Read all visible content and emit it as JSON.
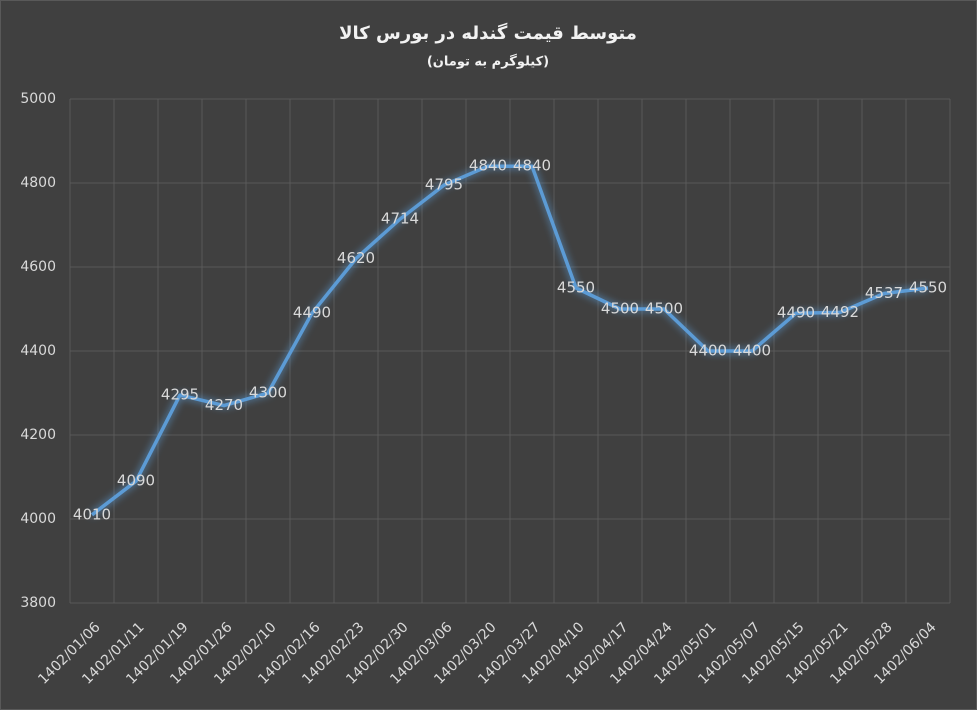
{
  "chart_data": {
    "type": "line",
    "title": "متوسط قیمت گندله در بورس کالا",
    "subtitle": "(کیلوگرم به تومان)",
    "categories": [
      "1402/01/06",
      "1402/01/11",
      "1402/01/19",
      "1402/01/26",
      "1402/02/10",
      "1402/02/16",
      "1402/02/23",
      "1402/02/30",
      "1402/03/06",
      "1402/03/20",
      "1402/03/27",
      "1402/04/10",
      "1402/04/17",
      "1402/04/24",
      "1402/05/01",
      "1402/05/07",
      "1402/05/15",
      "1402/05/21",
      "1402/05/28",
      "1402/06/04"
    ],
    "values": [
      4010,
      4090,
      4295,
      4270,
      4300,
      4490,
      4620,
      4714,
      4795,
      4840,
      4840,
      4550,
      4500,
      4500,
      4400,
      4400,
      4490,
      4492,
      4537,
      4550
    ],
    "color": "#5b9bd5",
    "ylim": [
      3800,
      5000
    ],
    "yticks": [
      3800,
      4000,
      4200,
      4400,
      4600,
      4800,
      5000
    ],
    "grid": true
  }
}
